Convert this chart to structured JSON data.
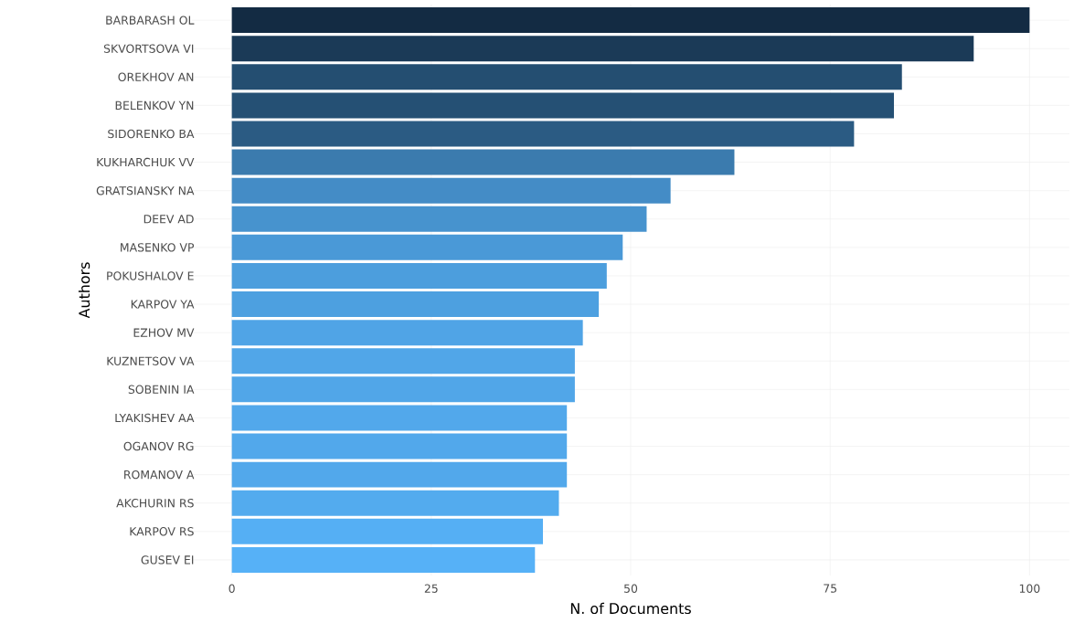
{
  "chart_data": {
    "type": "bar",
    "orientation": "horizontal",
    "xlabel": "N. of Documents",
    "ylabel": "Authors",
    "categories": [
      "BARBARASH OL",
      "SKVORTSOVA VI",
      "OREKHOV AN",
      "BELENKOV YN",
      "SIDORENKO BA",
      "KUKHARCHUK VV",
      "GRATSIANSKY NA",
      "DEEV AD",
      "MASENKO VP",
      "POKUSHALOV E",
      "KARPOV YA",
      "EZHOV MV",
      "KUZNETSOV VA",
      "SOBENIN IA",
      "LYAKISHEV AA",
      "OGANOV RG",
      "ROMANOV A",
      "AKCHURIN RS",
      "KARPOV RS",
      "GUSEV EI"
    ],
    "values": [
      100,
      93,
      84,
      83,
      78,
      63,
      55,
      52,
      49,
      47,
      46,
      44,
      43,
      43,
      42,
      42,
      42,
      41,
      39,
      38
    ],
    "colors": [
      "#132b43",
      "#1b3a57",
      "#244e71",
      "#255074",
      "#2b5b83",
      "#3b7bae",
      "#448cc6",
      "#4793ce",
      "#4a99d7",
      "#4c9edd",
      "#4da0e0",
      "#50a4e6",
      "#51a6e8",
      "#51a6e8",
      "#52a8eb",
      "#52a8eb",
      "#52a8eb",
      "#53abee",
      "#55aff4",
      "#56b1f7"
    ],
    "xlim": [
      -5,
      105
    ],
    "xticks": [
      0,
      25,
      50,
      75,
      100
    ],
    "grid": true
  }
}
